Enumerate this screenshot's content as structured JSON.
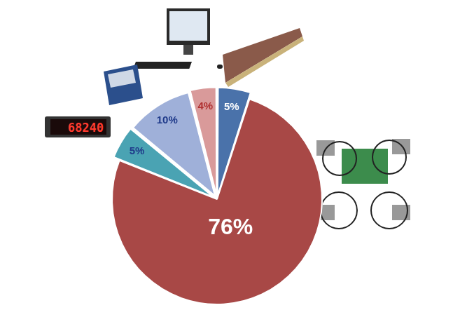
{
  "chart_data": {
    "type": "pie",
    "values": [
      5,
      76,
      5,
      10,
      4
    ],
    "value_labels": [
      "5%",
      "76%",
      "5%",
      "10%",
      "4%"
    ],
    "colors": [
      "#4a72aa",
      "#a84846",
      "#4aa3b3",
      "#9fb0d9",
      "#d99a9a"
    ],
    "data_labels": true,
    "annotations": [
      "68240"
    ]
  }
}
